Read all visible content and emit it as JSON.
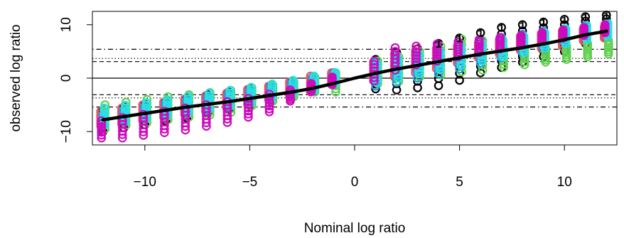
{
  "chart_data": {
    "type": "scatter",
    "xlabel": "Nominal log ratio",
    "ylabel": "observed log ratio",
    "xlim": [
      -12.5,
      12.5
    ],
    "ylim": [
      -12.5,
      12.5
    ],
    "x_ticks": [
      -10,
      -5,
      0,
      5,
      10
    ],
    "x_tick_labels": [
      "−10",
      "−5",
      "0",
      "5",
      "10"
    ],
    "y_ticks": [
      -10,
      0,
      10
    ],
    "y_tick_labels": [
      "−10",
      "0",
      "10"
    ],
    "grid": false,
    "legend": "none",
    "point_label": "1",
    "reference_lines": [
      {
        "y": 0,
        "style": "solid"
      },
      {
        "y": 5.4,
        "style": "dotdash"
      },
      {
        "y": 3.7,
        "style": "dotted"
      },
      {
        "y": 3.1,
        "style": "dashed"
      },
      {
        "y": -3.1,
        "style": "dashed"
      },
      {
        "y": -3.7,
        "style": "dotted"
      },
      {
        "y": -5.4,
        "style": "dotdash"
      }
    ],
    "fit_line": {
      "x": [
        -12,
        -11,
        -10,
        -9,
        -8,
        -7,
        -6,
        -5,
        -4,
        -3,
        -2,
        -1,
        0,
        1,
        2,
        3,
        4,
        5,
        6,
        7,
        8,
        9,
        10,
        11,
        12
      ],
      "y": [
        -7.8,
        -7.2,
        -6.6,
        -6.0,
        -5.4,
        -4.9,
        -4.4,
        -3.8,
        -3.2,
        -2.6,
        -1.9,
        -1.0,
        0.0,
        0.9,
        1.7,
        2.4,
        3.1,
        3.8,
        4.5,
        5.1,
        5.7,
        6.4,
        7.2,
        8.1,
        8.8
      ]
    },
    "series_colors": [
      "#000000",
      "#DF536B",
      "#61D04F",
      "#2297E6",
      "#28E2E5",
      "#CD0BBC"
    ],
    "series": [
      {
        "x": [
          -12,
          -11,
          -10,
          -9,
          -8,
          -7,
          -6,
          -5,
          -4,
          -3,
          -2,
          -1,
          1,
          2,
          3,
          4,
          5,
          6,
          7,
          8,
          9,
          10,
          11,
          12
        ],
        "ymin": [
          -10.0,
          -9.3,
          -8.7,
          -8.0,
          -7.4,
          -6.6,
          -5.9,
          -5.1,
          -4.2,
          -3.4,
          -2.5,
          -1.3,
          -2.0,
          -2.2,
          -1.8,
          -1.4,
          -0.4,
          1.0,
          2.0,
          3.0,
          4.0,
          5.0,
          6.5,
          7.5
        ],
        "ymax": [
          -6.0,
          -5.4,
          -4.9,
          -4.3,
          -3.7,
          -3.1,
          -2.6,
          -2.0,
          -1.4,
          -0.7,
          0.2,
          1.0,
          3.5,
          4.8,
          5.5,
          6.5,
          7.5,
          8.5,
          9.5,
          10.0,
          10.5,
          11.0,
          11.5,
          11.8
        ]
      },
      {
        "x": [
          -12,
          -11,
          -10,
          -9,
          -8,
          -7,
          -6,
          -5,
          -4,
          -3,
          -2,
          -1,
          1,
          2,
          3,
          4,
          5,
          6,
          7,
          8,
          9,
          10,
          11,
          12
        ],
        "ymin": [
          -9.0,
          -8.6,
          -8.0,
          -7.3,
          -6.8,
          -6.2,
          -5.6,
          -4.9,
          -4.0,
          -3.3,
          -2.6,
          -1.2,
          -0.5,
          0.2,
          1.0,
          1.8,
          2.8,
          3.8,
          4.5,
          5.2,
          5.6,
          6.0,
          7.0,
          7.5
        ],
        "ymax": [
          -6.2,
          -5.6,
          -5.0,
          -4.5,
          -3.9,
          -3.3,
          -2.8,
          -2.1,
          -1.5,
          -0.7,
          0.4,
          1.0,
          3.0,
          4.5,
          5.0,
          5.5,
          6.0,
          6.6,
          7.2,
          7.8,
          8.3,
          8.8,
          9.2,
          9.5
        ]
      },
      {
        "x": [
          -12,
          -11,
          -10,
          -9,
          -8,
          -7,
          -6,
          -5,
          -4,
          -3,
          -2,
          -1,
          1,
          2,
          3,
          4,
          5,
          6,
          7,
          8,
          9,
          10,
          11,
          12
        ],
        "ymin": [
          -9.5,
          -8.8,
          -8.3,
          -7.8,
          -7.3,
          -6.9,
          -6.4,
          -5.2,
          -4.3,
          -3.5,
          -2.6,
          -2.6,
          -1.0,
          -0.6,
          0.2,
          0.6,
          1.2,
          1.5,
          2.0,
          2.5,
          3.0,
          3.5,
          4.0,
          4.5
        ],
        "ymax": [
          -5.0,
          -4.5,
          -4.0,
          -3.5,
          -3.1,
          -2.7,
          -2.3,
          -1.8,
          -1.3,
          -0.7,
          0.2,
          1.0,
          3.2,
          4.0,
          5.0,
          6.0,
          7.3,
          7.0,
          5.5,
          5.8,
          5.5,
          6.0,
          6.5,
          7.0
        ]
      },
      {
        "x": [
          -12,
          -11,
          -10,
          -9,
          -8,
          -7,
          -6,
          -5,
          -4,
          -3,
          -2,
          -1,
          1,
          2,
          3,
          4,
          5,
          6,
          7,
          8,
          9,
          10,
          11,
          12
        ],
        "ymin": [
          -9.0,
          -8.2,
          -7.6,
          -7.0,
          -6.5,
          -6.0,
          -5.4,
          -4.8,
          -4.0,
          -3.2,
          -2.4,
          -1.2,
          -1.5,
          -0.8,
          0.0,
          0.8,
          1.7,
          2.8,
          3.8,
          4.8,
          5.8,
          6.8,
          7.8,
          8.5
        ],
        "ymax": [
          -7.0,
          -6.0,
          -5.3,
          -4.6,
          -4.0,
          -3.4,
          -2.8,
          -2.2,
          -1.6,
          -0.9,
          0.0,
          0.8,
          3.0,
          4.0,
          4.8,
          5.5,
          6.2,
          7.0,
          7.6,
          8.2,
          8.8,
          9.2,
          9.8,
          10.2
        ]
      },
      {
        "x": [
          -12,
          -11,
          -10,
          -9,
          -8,
          -7,
          -6,
          -5,
          -4,
          -3,
          -2,
          -1,
          1,
          2,
          3,
          4,
          5,
          6,
          7,
          8,
          9,
          10,
          11,
          12
        ],
        "ymin": [
          -8.8,
          -8.2,
          -7.6,
          -7.0,
          -6.4,
          -5.8,
          -5.2,
          -4.6,
          -3.8,
          -3.0,
          -2.2,
          -1.0,
          -0.8,
          0.0,
          0.8,
          1.6,
          2.4,
          3.2,
          4.0,
          4.8,
          5.6,
          6.4,
          7.2,
          7.8
        ],
        "ymax": [
          -5.6,
          -5.1,
          -4.6,
          -4.0,
          -3.4,
          -2.8,
          -2.3,
          -1.7,
          -1.1,
          -0.4,
          0.4,
          1.0,
          2.8,
          3.6,
          4.3,
          5.0,
          5.7,
          6.4,
          7.1,
          7.8,
          8.5,
          9.2,
          9.8,
          10.3
        ]
      },
      {
        "x": [
          -12,
          -11,
          -10,
          -9,
          -8,
          -7,
          -6,
          -5,
          -4,
          -3,
          -2,
          -1,
          1,
          2,
          3,
          4,
          5,
          6,
          7,
          8,
          9,
          10,
          11,
          12
        ],
        "ymin": [
          -11.2,
          -11.2,
          -10.7,
          -10.2,
          -9.7,
          -9.0,
          -8.3,
          -7.3,
          -6.3,
          -4.3,
          -2.5,
          -1.2,
          -0.5,
          1.5,
          2.5,
          3.2,
          4.0,
          4.8,
          5.5,
          6.3,
          7.0,
          7.5,
          8.0,
          8.5
        ],
        "ymax": [
          -8.0,
          -7.4,
          -6.8,
          -6.2,
          -5.6,
          -5.0,
          -4.4,
          -3.8,
          -3.0,
          -2.2,
          -1.0,
          0.2,
          3.2,
          5.7,
          6.0,
          6.4,
          6.8,
          7.2,
          7.6,
          8.0,
          8.5,
          9.0,
          9.5,
          10.0
        ]
      }
    ]
  }
}
